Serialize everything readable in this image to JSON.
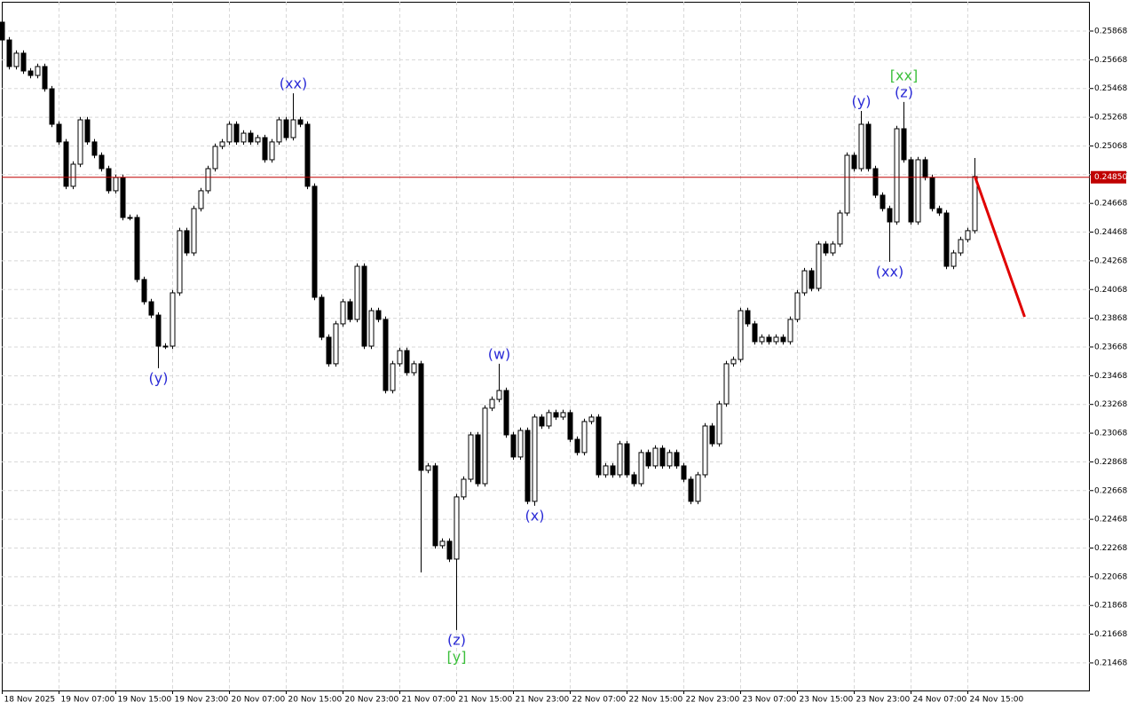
{
  "chart_data": {
    "type": "candlestick",
    "categories": [
      "18 Nov 2025",
      null,
      null,
      null,
      null,
      null,
      null,
      null,
      "19 Nov 07:00",
      null,
      null,
      null,
      null,
      null,
      null,
      null,
      "19 Nov 15:00",
      null,
      null,
      null,
      null,
      null,
      null,
      null,
      "19 Nov 23:00",
      null,
      null,
      null,
      null,
      null,
      null,
      null,
      "20 Nov 07:00",
      null,
      null,
      null,
      null,
      null,
      null,
      null,
      "20 Nov 15:00",
      null,
      null,
      null,
      null,
      null,
      null,
      null,
      "20 Nov 23:00",
      null,
      null,
      null,
      null,
      null,
      null,
      null,
      "21 Nov 07:00",
      null,
      null,
      null,
      null,
      null,
      null,
      null,
      "21 Nov 15:00",
      null,
      null,
      null,
      null,
      null,
      null,
      null,
      "21 Nov 23:00",
      null,
      null,
      null,
      null,
      null,
      null,
      null,
      "22 Nov 07:00",
      null,
      null,
      null,
      null,
      null,
      null,
      null,
      "22 Nov 15:00",
      null,
      null,
      null,
      null,
      null,
      null,
      null,
      "22 Nov 23:00",
      null,
      null,
      null,
      null,
      null,
      null,
      null,
      "23 Nov 07:00",
      null,
      null,
      null,
      null,
      null,
      null,
      null,
      "23 Nov 15:00",
      null,
      null,
      null,
      null,
      null,
      null,
      null,
      "23 Nov 23:00",
      null,
      null,
      null,
      null,
      null,
      null,
      null,
      "24 Nov 07:00",
      null,
      null,
      null,
      null,
      null,
      null,
      null,
      "24 Nov 15:00",
      null
    ],
    "open": [
      0.2593,
      0.25806,
      0.25621,
      0.25714,
      0.2559,
      0.25559,
      0.25621,
      0.25466,
      0.25219,
      0.25096,
      0.24787,
      0.24941,
      0.2525,
      0.25096,
      0.25003,
      0.2491,
      0.24756,
      0.24848,
      0.2457,
      0.2457,
      0.24138,
      0.23983,
      0.2389,
      0.23674,
      0.23674,
      0.24045,
      0.24478,
      0.24323,
      0.24632,
      0.24756,
      0.2491,
      0.25065,
      0.25096,
      0.25219,
      0.25096,
      0.25157,
      0.25096,
      0.25126,
      0.24972,
      0.25096,
      0.2525,
      0.25126,
      0.2525,
      0.25219,
      0.24787,
      0.24014,
      0.23736,
      0.23551,
      0.23829,
      0.23983,
      0.2386,
      0.2423,
      0.23674,
      0.23921,
      0.2386,
      0.23365,
      0.23551,
      0.23643,
      0.23489,
      0.23551,
      0.22809,
      0.2284,
      0.22284,
      0.22315,
      0.22191,
      0.22624,
      0.22747,
      0.23056,
      0.22716,
      0.23242,
      0.23303,
      0.23365,
      0.23056,
      0.22902,
      0.23087,
      0.22593,
      0.2318,
      0.23118,
      0.23211,
      0.2318,
      0.23211,
      0.23025,
      0.22933,
      0.23149,
      0.2318,
      0.22778,
      0.2284,
      0.22778,
      0.22994,
      0.22778,
      0.22716,
      0.22933,
      0.2284,
      0.22963,
      0.2284,
      0.22933,
      0.2284,
      0.22747,
      0.22593,
      0.22778,
      0.23118,
      0.22994,
      0.23272,
      0.23551,
      0.23581,
      0.23921,
      0.23829,
      0.23705,
      0.23736,
      0.23705,
      0.23736,
      0.23705,
      0.2386,
      0.24045,
      0.24199,
      0.24076,
      0.24385,
      0.24323,
      0.24385,
      0.24601,
      0.25003,
      0.2491,
      0.25219,
      0.2491,
      0.24725,
      0.24632,
      0.24539,
      0.25188,
      0.24972,
      0.24539,
      0.24972,
      0.24848,
      0.24632,
      0.24601,
      0.2423,
      0.24323,
      0.24416,
      0.24478
    ],
    "high": [
      0.25961,
      0.25826,
      0.25734,
      0.25734,
      0.2561,
      0.25641,
      0.25641,
      0.25486,
      0.25239,
      0.25116,
      0.24961,
      0.2527,
      0.2527,
      0.25116,
      0.25023,
      0.2493,
      0.24868,
      0.24868,
      0.2459,
      0.2459,
      0.24158,
      0.24003,
      0.2391,
      0.23694,
      0.24065,
      0.24498,
      0.24498,
      0.24652,
      0.24776,
      0.2493,
      0.25085,
      0.25116,
      0.25239,
      0.25239,
      0.25177,
      0.25177,
      0.25146,
      0.25146,
      0.25116,
      0.2527,
      0.2527,
      0.25435,
      0.2527,
      0.25239,
      0.24807,
      0.24034,
      0.23756,
      0.23849,
      0.24003,
      0.24003,
      0.2425,
      0.2425,
      0.23941,
      0.23941,
      0.2388,
      0.23571,
      0.23663,
      0.23663,
      0.23571,
      0.23571,
      0.2286,
      0.2286,
      0.22335,
      0.22335,
      0.22644,
      0.22767,
      0.23076,
      0.23076,
      0.23262,
      0.23323,
      0.23551,
      0.23385,
      0.23076,
      0.23107,
      0.23107,
      0.232,
      0.232,
      0.23231,
      0.23231,
      0.23231,
      0.23231,
      0.23045,
      0.23169,
      0.232,
      0.232,
      0.2286,
      0.2286,
      0.23014,
      0.23014,
      0.22798,
      0.22953,
      0.22953,
      0.22983,
      0.22983,
      0.22953,
      0.22953,
      0.2286,
      0.22767,
      0.22798,
      0.23138,
      0.23138,
      0.23292,
      0.23571,
      0.23601,
      0.23941,
      0.23941,
      0.23849,
      0.23756,
      0.23756,
      0.23756,
      0.23756,
      0.2388,
      0.24065,
      0.24219,
      0.24219,
      0.24405,
      0.24405,
      0.24405,
      0.24621,
      0.25023,
      0.25023,
      0.25312,
      0.25239,
      0.2493,
      0.24745,
      0.24652,
      0.25208,
      0.25374,
      0.24992,
      0.24992,
      0.24992,
      0.24868,
      0.24652,
      0.24621,
      0.24343,
      0.24436,
      0.24498,
      0.24984
    ],
    "low": [
      0.25786,
      0.25601,
      0.25601,
      0.2557,
      0.25539,
      0.25539,
      0.25446,
      0.25199,
      0.25076,
      0.24767,
      0.24767,
      0.24921,
      0.25076,
      0.24983,
      0.2489,
      0.24736,
      0.24736,
      0.2455,
      0.2455,
      0.24118,
      0.23963,
      0.2387,
      0.2352,
      0.23654,
      0.23654,
      0.24025,
      0.24303,
      0.24303,
      0.24612,
      0.24736,
      0.2489,
      0.25045,
      0.25076,
      0.25076,
      0.25076,
      0.25076,
      0.25076,
      0.24952,
      0.24952,
      0.25076,
      0.25106,
      0.25106,
      0.25199,
      0.24767,
      0.23994,
      0.23716,
      0.23531,
      0.23531,
      0.23809,
      0.2384,
      0.2384,
      0.23654,
      0.23654,
      0.2384,
      0.23345,
      0.23345,
      0.23531,
      0.23469,
      0.23469,
      0.22098,
      0.22789,
      0.22264,
      0.22264,
      0.22171,
      0.21697,
      0.22604,
      0.22727,
      0.22696,
      0.22696,
      0.23222,
      0.23283,
      0.23036,
      0.22882,
      0.22882,
      0.22573,
      0.22562,
      0.23098,
      0.23098,
      0.2316,
      0.2316,
      0.23005,
      0.22913,
      0.22913,
      0.23129,
      0.22758,
      0.22758,
      0.22758,
      0.22758,
      0.22758,
      0.22696,
      0.22696,
      0.2282,
      0.2282,
      0.2282,
      0.2282,
      0.2282,
      0.22727,
      0.22573,
      0.22573,
      0.22758,
      0.22974,
      0.22974,
      0.23252,
      0.23531,
      0.23561,
      0.23809,
      0.23685,
      0.23685,
      0.23685,
      0.23685,
      0.23685,
      0.23685,
      0.2384,
      0.24025,
      0.24056,
      0.24056,
      0.24303,
      0.24303,
      0.24365,
      0.24581,
      0.2489,
      0.2489,
      0.2489,
      0.24705,
      0.24612,
      0.24261,
      0.24519,
      0.24952,
      0.24519,
      0.24519,
      0.24828,
      0.24612,
      0.24581,
      0.2421,
      0.2421,
      0.24303,
      0.24396,
      0.24458
    ],
    "close": [
      0.25806,
      0.25621,
      0.25714,
      0.2559,
      0.25559,
      0.25621,
      0.25466,
      0.25219,
      0.25096,
      0.24787,
      0.24941,
      0.2525,
      0.25096,
      0.25003,
      0.2491,
      0.24756,
      0.24848,
      0.2457,
      0.2457,
      0.24138,
      0.23983,
      0.2389,
      0.23674,
      0.23674,
      0.24045,
      0.24478,
      0.24323,
      0.24632,
      0.24756,
      0.2491,
      0.25065,
      0.25096,
      0.25219,
      0.25096,
      0.25157,
      0.25096,
      0.25126,
      0.24972,
      0.25096,
      0.2525,
      0.25126,
      0.2525,
      0.25219,
      0.24787,
      0.24014,
      0.23736,
      0.23551,
      0.23829,
      0.23983,
      0.2386,
      0.2423,
      0.23674,
      0.23921,
      0.2386,
      0.23365,
      0.23551,
      0.23643,
      0.23489,
      0.23551,
      0.22809,
      0.2284,
      0.22284,
      0.22315,
      0.22191,
      0.22624,
      0.22747,
      0.23056,
      0.22716,
      0.23242,
      0.23303,
      0.23365,
      0.23056,
      0.22902,
      0.23087,
      0.22593,
      0.2318,
      0.23118,
      0.23211,
      0.2318,
      0.23211,
      0.23025,
      0.22933,
      0.23149,
      0.2318,
      0.22778,
      0.2284,
      0.22778,
      0.22994,
      0.22778,
      0.22716,
      0.22933,
      0.2284,
      0.22963,
      0.2284,
      0.22933,
      0.2284,
      0.22747,
      0.22593,
      0.22778,
      0.23118,
      0.22994,
      0.23272,
      0.23551,
      0.23581,
      0.23921,
      0.23829,
      0.23705,
      0.23736,
      0.23705,
      0.23736,
      0.23705,
      0.2386,
      0.24045,
      0.24199,
      0.24076,
      0.24385,
      0.24323,
      0.24385,
      0.24601,
      0.25003,
      0.2491,
      0.25219,
      0.2491,
      0.24725,
      0.24632,
      0.24539,
      0.25188,
      0.24972,
      0.24539,
      0.24972,
      0.24848,
      0.24632,
      0.24601,
      0.2423,
      0.24323,
      0.24416,
      0.24478,
      0.24855
    ],
    "up_color": "#ffffff",
    "down_color": "#000000",
    "ylim": [
      0.21276,
      0.26072
    ],
    "yticks": [
      0.25868,
      0.25668,
      0.25468,
      0.25268,
      0.25068,
      0.24868,
      0.24668,
      0.24468,
      0.24268,
      0.24068,
      0.23868,
      0.23668,
      0.23468,
      0.23268,
      0.23068,
      0.22868,
      0.22668,
      0.22468,
      0.22268,
      0.22068,
      0.21868,
      0.21668,
      0.21468
    ],
    "grid": true,
    "price_line": {
      "value": 0.2485,
      "label": "0.24850",
      "color": "#c00000"
    },
    "forecast": {
      "x": [
        137,
        144
      ],
      "values": [
        0.24855,
        0.23878
      ],
      "color": "#e00000"
    },
    "annotations": [
      {
        "text": "(y)",
        "at": 22,
        "side": "below",
        "color": "#2a2ad6"
      },
      {
        "text": "(xx)",
        "at": 41,
        "side": "above",
        "color": "#2a2ad6"
      },
      {
        "text": "(w)",
        "at": 70,
        "side": "above",
        "color": "#2a2ad6"
      },
      {
        "text": "(z)",
        "at": 64,
        "side": "below",
        "color": "#2a2ad6"
      },
      {
        "text": "[y]",
        "at": 64,
        "side": "below",
        "color": "#3cbf3c"
      },
      {
        "text": "(x)",
        "at": 75,
        "side": "below",
        "color": "#2a2ad6"
      },
      {
        "text": "(y)",
        "at": 121,
        "side": "above",
        "color": "#2a2ad6"
      },
      {
        "text": "(z)",
        "at": 127,
        "side": "above",
        "color": "#2a2ad6"
      },
      {
        "text": "[xx]",
        "at": 127,
        "side": "above",
        "color": "#3cbf3c"
      },
      {
        "text": "(xx)",
        "at": 125,
        "side": "below",
        "color": "#2a2ad6"
      }
    ]
  }
}
